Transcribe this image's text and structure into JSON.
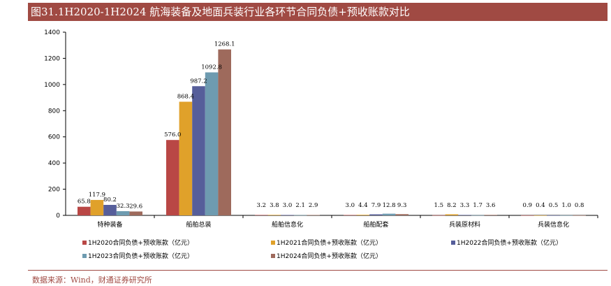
{
  "header": {
    "title": "图31.1H2020-1H2024 航海装备及地面兵装行业各环节合同负债+预收账款对比"
  },
  "footer": {
    "source": "数据来源：Wind，财通证券研究所"
  },
  "chart_data": {
    "type": "bar",
    "title": "图31.1H2020-1H2024 航海装备及地面兵装行业各环节合同负债+预收账款对比",
    "xlabel": "",
    "ylabel": "",
    "ylim": [
      0,
      1400
    ],
    "yticks": [
      0,
      200,
      400,
      600,
      800,
      1000,
      1200,
      1400
    ],
    "grid": false,
    "legend_placement": "bottom",
    "categories": [
      "特种装备",
      "船舶总装",
      "船舶信息化",
      "船舶配套",
      "兵装原材料",
      "兵装信息化"
    ],
    "series": [
      {
        "name": "1H2020合同负债+预收账款（亿元）",
        "color": "#b94745",
        "values": [
          65.8,
          576.0,
          3.2,
          3.0,
          1.5,
          0.9
        ],
        "labels": [
          "65.8",
          "576.0",
          "3.2",
          "3.0",
          "1.5",
          "0.9"
        ]
      },
      {
        "name": "1H2021合同负债+预收账款（亿元）",
        "color": "#e0a12a",
        "values": [
          117.9,
          868.4,
          3.8,
          4.4,
          8.2,
          0.4
        ],
        "labels": [
          "117.9",
          "868.4",
          "3.8",
          "4.4",
          "8.2",
          "0.4"
        ]
      },
      {
        "name": "1H2022合同负债+预收账款（亿元）",
        "color": "#565e9a",
        "values": [
          80.2,
          987.2,
          3.0,
          7.9,
          3.3,
          0.5
        ],
        "labels": [
          "80.2",
          "987.2",
          "3.0",
          "7.9",
          "3.3",
          "0.5"
        ]
      },
      {
        "name": "1H2023合同负债+预收账款（亿元）",
        "color": "#6e9bb0",
        "values": [
          32.3,
          1092.8,
          2.1,
          12.8,
          1.7,
          1.0
        ],
        "labels": [
          "32.3",
          "1092.8",
          "2.1",
          "12.8",
          "1.7",
          "1.0"
        ]
      },
      {
        "name": "1H2024合同负债+预收账款（亿元）",
        "color": "#9e6a5c",
        "values": [
          29.6,
          1268.1,
          2.9,
          9.3,
          3.6,
          0.8
        ],
        "labels": [
          "29.6",
          "1268.1",
          "2.9",
          "9.3",
          "3.6",
          "0.8"
        ]
      }
    ]
  }
}
